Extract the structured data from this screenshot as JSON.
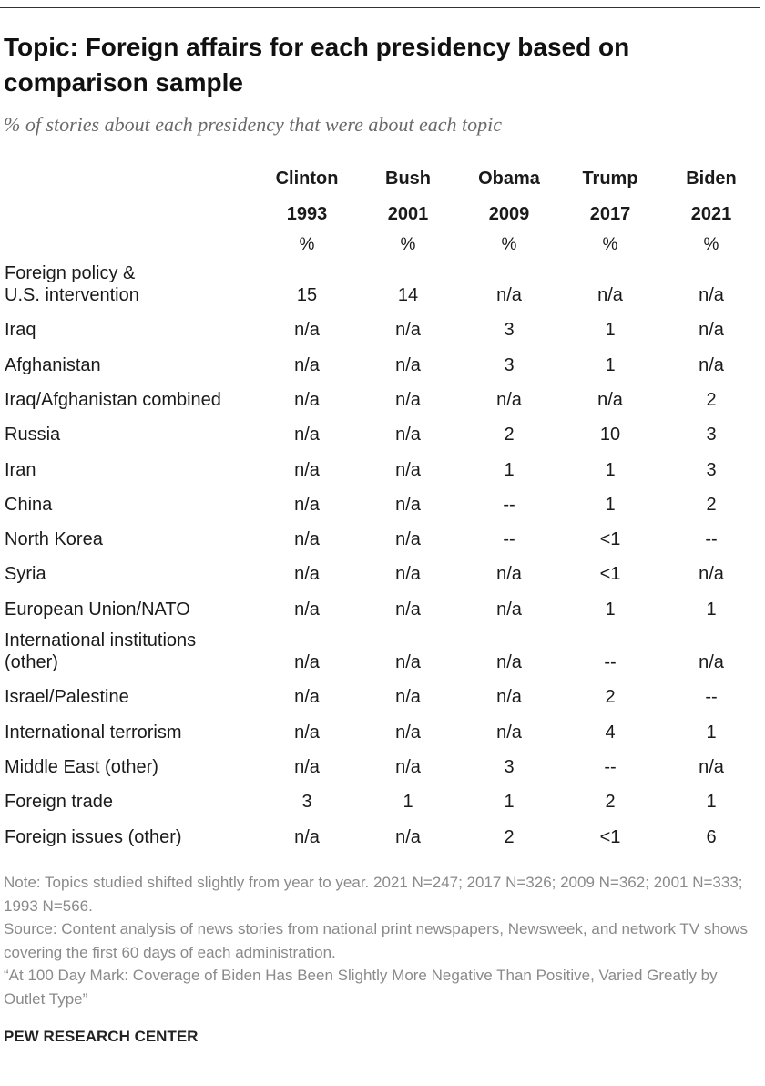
{
  "title": "Topic: Foreign affairs for each presidency based on comparison sample",
  "subtitle": "% of stories about each presidency that were about each topic",
  "chart_data": {
    "type": "table",
    "columns": [
      {
        "name": "Clinton",
        "year": "1993",
        "unit": "%"
      },
      {
        "name": "Bush",
        "year": "2001",
        "unit": "%"
      },
      {
        "name": "Obama",
        "year": "2009",
        "unit": "%"
      },
      {
        "name": "Trump",
        "year": "2017",
        "unit": "%"
      },
      {
        "name": "Biden",
        "year": "2021",
        "unit": "%"
      }
    ],
    "rows": [
      {
        "label": [
          "Foreign policy &",
          "U.S. intervention"
        ],
        "values": [
          "15",
          "14",
          "n/a",
          "n/a",
          "n/a"
        ]
      },
      {
        "label": [
          "Iraq"
        ],
        "values": [
          "n/a",
          "n/a",
          "3",
          "1",
          "n/a"
        ]
      },
      {
        "label": [
          "Afghanistan"
        ],
        "values": [
          "n/a",
          "n/a",
          "3",
          "1",
          "n/a"
        ]
      },
      {
        "label": [
          "Iraq/Afghanistan combined"
        ],
        "values": [
          "n/a",
          "n/a",
          "n/a",
          "n/a",
          "2"
        ]
      },
      {
        "label": [
          "Russia"
        ],
        "values": [
          "n/a",
          "n/a",
          "2",
          "10",
          "3"
        ]
      },
      {
        "label": [
          "Iran"
        ],
        "values": [
          "n/a",
          "n/a",
          "1",
          "1",
          "3"
        ]
      },
      {
        "label": [
          "China"
        ],
        "values": [
          "n/a",
          "n/a",
          "--",
          "1",
          "2"
        ]
      },
      {
        "label": [
          "North Korea"
        ],
        "values": [
          "n/a",
          "n/a",
          "--",
          "<1",
          "--"
        ]
      },
      {
        "label": [
          "Syria"
        ],
        "values": [
          "n/a",
          "n/a",
          "n/a",
          "<1",
          "n/a"
        ]
      },
      {
        "label": [
          "European Union/NATO"
        ],
        "values": [
          "n/a",
          "n/a",
          "n/a",
          "1",
          "1"
        ]
      },
      {
        "label": [
          "International institutions",
          "(other)"
        ],
        "values": [
          "n/a",
          "n/a",
          "n/a",
          "--",
          "n/a"
        ]
      },
      {
        "label": [
          "Israel/Palestine"
        ],
        "values": [
          "n/a",
          "n/a",
          "n/a",
          "2",
          "--"
        ]
      },
      {
        "label": [
          "International terrorism"
        ],
        "values": [
          "n/a",
          "n/a",
          "n/a",
          "4",
          "1"
        ]
      },
      {
        "label": [
          "Middle East (other)"
        ],
        "values": [
          "n/a",
          "n/a",
          "3",
          "--",
          "n/a"
        ]
      },
      {
        "label": [
          "Foreign trade"
        ],
        "values": [
          "3",
          "1",
          "1",
          "2",
          "1"
        ]
      },
      {
        "label": [
          "Foreign issues (other)"
        ],
        "values": [
          "n/a",
          "n/a",
          "2",
          "<1",
          "6"
        ]
      }
    ]
  },
  "notes": {
    "note": "Note: Topics studied shifted slightly from year to year. 2021 N=247; 2017 N=326; 2009 N=362; 2001 N=333; 1993 N=566.",
    "source": "Source: Content analysis of news stories from national print newspapers, Newsweek, and network TV shows covering the first 60 days of each administration.",
    "report": "“At 100 Day Mark: Coverage of Biden Has Been Slightly More Negative Than Positive, Varied Greatly by Outlet Type”"
  },
  "brand": "PEW RESEARCH CENTER"
}
